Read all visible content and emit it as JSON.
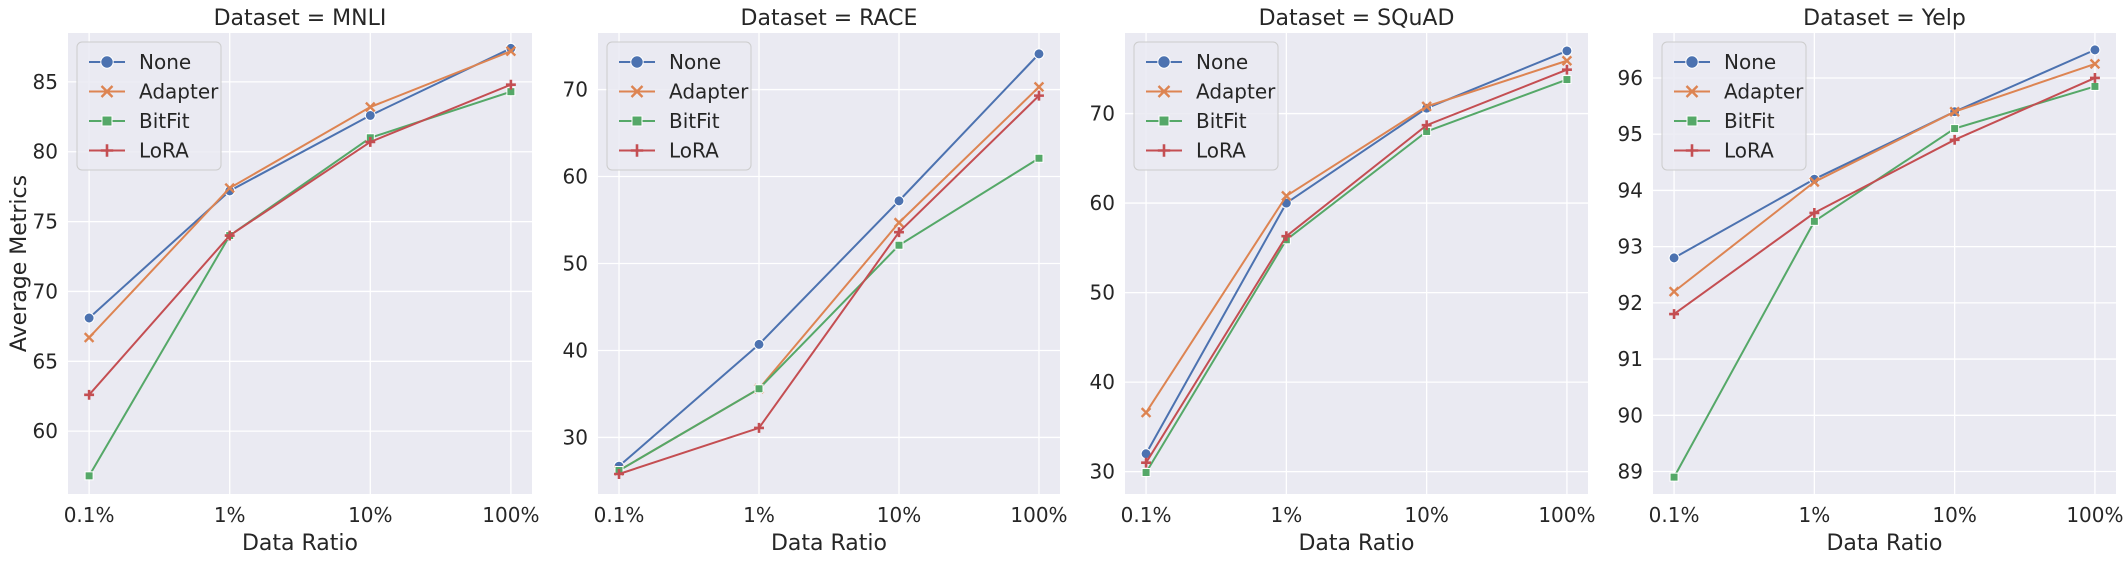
{
  "chart_data": [
    {
      "type": "line",
      "title": "Dataset = MNLI",
      "xlabel": "Data Ratio",
      "ylabel": "Average Metrics",
      "categories": [
        "0.1%",
        "1%",
        "10%",
        "100%"
      ],
      "ylim": [
        55.5,
        88.5
      ],
      "yticks": [
        60,
        65,
        70,
        75,
        80,
        85
      ],
      "series": [
        {
          "name": "None",
          "values": [
            68.1,
            77.2,
            82.6,
            87.4
          ]
        },
        {
          "name": "Adapter",
          "values": [
            66.7,
            77.4,
            83.2,
            87.2
          ]
        },
        {
          "name": "BitFit",
          "values": [
            56.8,
            74.0,
            81.0,
            84.3
          ]
        },
        {
          "name": "LoRA",
          "values": [
            62.6,
            74.0,
            80.7,
            84.8
          ]
        }
      ],
      "legend": "upper-left",
      "grid": true
    },
    {
      "type": "line",
      "title": "Dataset = RACE",
      "xlabel": "Data Ratio",
      "ylabel": "",
      "categories": [
        "0.1%",
        "1%",
        "10%",
        "100%"
      ],
      "ylim": [
        23.5,
        76.5
      ],
      "yticks": [
        30,
        40,
        50,
        60,
        70
      ],
      "series": [
        {
          "name": "None",
          "values": [
            26.7,
            40.7,
            57.2,
            74.1
          ]
        },
        {
          "name": "Adapter",
          "values": [
            26.2,
            35.6,
            54.7,
            70.3
          ]
        },
        {
          "name": "BitFit",
          "values": [
            26.2,
            35.6,
            52.1,
            62.1
          ]
        },
        {
          "name": "LoRA",
          "values": [
            25.8,
            31.1,
            53.6,
            69.3
          ]
        }
      ],
      "legend": "upper-left",
      "grid": true
    },
    {
      "type": "line",
      "title": "Dataset = SQuAD",
      "xlabel": "Data Ratio",
      "ylabel": "",
      "categories": [
        "0.1%",
        "1%",
        "10%",
        "100%"
      ],
      "ylim": [
        27.5,
        79.0
      ],
      "yticks": [
        30,
        40,
        50,
        60,
        70
      ],
      "series": [
        {
          "name": "None",
          "values": [
            32.0,
            60.0,
            70.6,
            77.0
          ]
        },
        {
          "name": "Adapter",
          "values": [
            36.6,
            60.8,
            70.8,
            75.9
          ]
        },
        {
          "name": "BitFit",
          "values": [
            29.9,
            55.9,
            68.0,
            73.8
          ]
        },
        {
          "name": "LoRA",
          "values": [
            31.0,
            56.3,
            68.7,
            74.9
          ]
        }
      ],
      "legend": "upper-left",
      "grid": true
    },
    {
      "type": "line",
      "title": "Dataset = Yelp",
      "xlabel": "Data Ratio",
      "ylabel": "",
      "categories": [
        "0.1%",
        "1%",
        "10%",
        "100%"
      ],
      "ylim": [
        88.6,
        96.8
      ],
      "yticks": [
        89,
        90,
        91,
        92,
        93,
        94,
        95,
        96
      ],
      "series": [
        {
          "name": "None",
          "values": [
            92.8,
            94.2,
            95.4,
            96.5
          ]
        },
        {
          "name": "Adapter",
          "values": [
            92.2,
            94.15,
            95.4,
            96.25
          ]
        },
        {
          "name": "BitFit",
          "values": [
            88.9,
            93.45,
            95.1,
            95.85
          ]
        },
        {
          "name": "LoRA",
          "values": [
            91.8,
            93.6,
            94.9,
            96.0
          ]
        }
      ],
      "legend": "upper-left",
      "grid": true
    }
  ],
  "colors": {
    "None": "#4c72b0",
    "Adapter": "#dd8452",
    "BitFit": "#55a868",
    "LoRA": "#c44e52",
    "axes_bg": "#eaeaf2",
    "grid": "#ffffff",
    "text": "#262626"
  },
  "markers": {
    "None": "circle",
    "Adapter": "x",
    "BitFit": "square",
    "LoRA": "plus"
  }
}
